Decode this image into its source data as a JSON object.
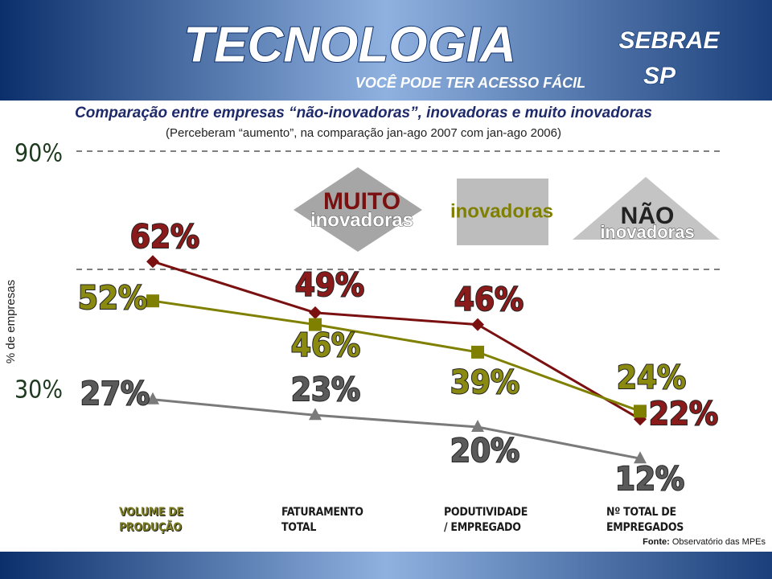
{
  "header": {
    "brand": "TECNOLOGIA",
    "tagline": "VOCÊ PODE TER ACESSO FÁCIL",
    "logo": "SEBRAE",
    "logo_region": "SP"
  },
  "chart_data": {
    "type": "line",
    "title": "Comparação entre empresas “não-inovadoras”, inovadoras e muito inovadoras",
    "subtitle": "(Perceberam “aumento”, na comparação jan-ago 2007 com jan-ago 2006)",
    "y_label": "% de empresas",
    "categories": [
      "VOLUME DE PRODUÇÃO",
      "FATURAMENTO TOTAL",
      "PODUTIVIDADE / EMPREGADO",
      "Nº TOTAL DE EMPREGADOS"
    ],
    "ylim": [
      0,
      90
    ],
    "yticks": [
      {
        "value": 30,
        "label": "30%"
      },
      {
        "value": 90,
        "label": "90%"
      }
    ],
    "gridlines": [
      60,
      90
    ],
    "series": [
      {
        "name": "inovadoras",
        "qualifier": "MUITO",
        "color": "#7a1010",
        "marker": "diamond",
        "values": [
          62,
          49,
          46,
          22
        ],
        "value_labels": [
          "62%",
          "49%",
          "46%",
          "22%"
        ]
      },
      {
        "name": "inovadoras",
        "color": "#7f7f00",
        "marker": "square",
        "values": [
          52,
          46,
          39,
          24
        ],
        "value_labels": [
          "52%",
          "46%",
          "39%",
          "24%"
        ]
      },
      {
        "name": "inovadoras",
        "qualifier": "NÃO",
        "color": "#7a7a7a",
        "marker": "triangle",
        "values": [
          27,
          23,
          20,
          12
        ],
        "value_labels": [
          "27%",
          "23%",
          "20%",
          "12%"
        ]
      }
    ],
    "source_label": "Fonte:",
    "source": "Observatório das MPEs"
  }
}
